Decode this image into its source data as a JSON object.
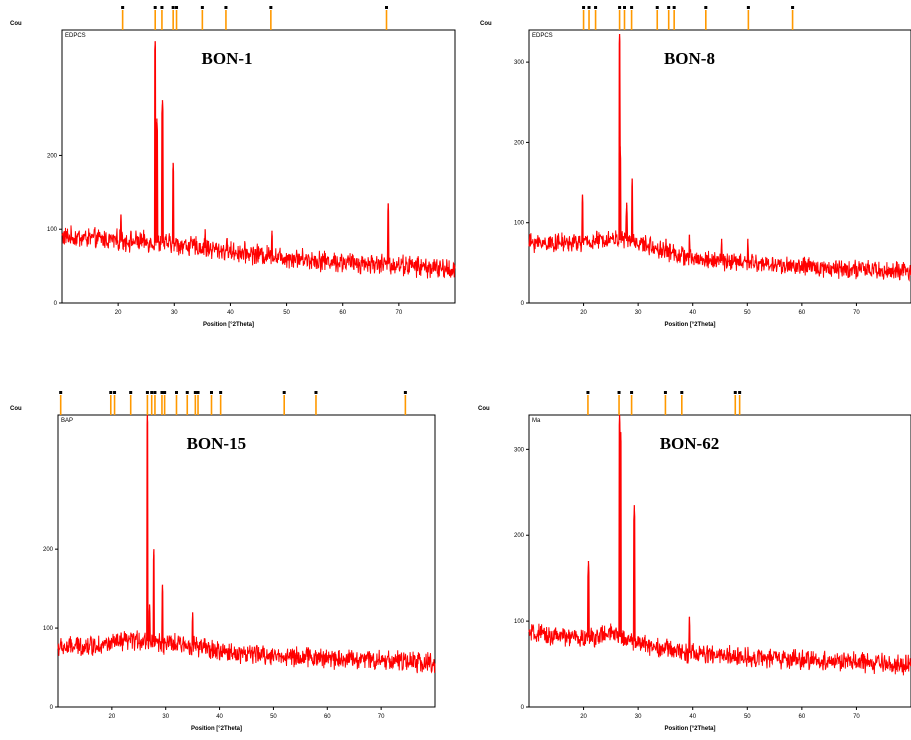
{
  "colors": {
    "trace": "#ff0000",
    "marker": "#ff9900",
    "frame": "#000000",
    "background": "#ffffff"
  },
  "chart_data": [
    {
      "type": "line",
      "title": "BON-1",
      "ylabel": "Cou",
      "inner_label": "EDPCS",
      "xlabel": "Position [°2Theta]",
      "xlim": [
        10,
        80
      ],
      "ylim": [
        0,
        370
      ],
      "xticks": [
        20,
        30,
        40,
        50,
        60,
        70
      ],
      "xtick_labels": [
        "20",
        "30",
        "40",
        "50",
        "60",
        "70"
      ],
      "yticks": [
        0,
        100,
        200
      ],
      "ytick_labels": [
        "0",
        "100",
        "200"
      ],
      "baseline": [
        [
          10,
          90
        ],
        [
          20,
          85
        ],
        [
          30,
          80
        ],
        [
          40,
          70
        ],
        [
          50,
          62
        ],
        [
          60,
          55
        ],
        [
          70,
          52
        ],
        [
          80,
          45
        ]
      ],
      "noise": 11,
      "peaks": [
        [
          20.5,
          120
        ],
        [
          26.6,
          355
        ],
        [
          26.9,
          250
        ],
        [
          27.9,
          275
        ],
        [
          29.8,
          190
        ],
        [
          35.5,
          100
        ],
        [
          39.4,
          88
        ],
        [
          47.4,
          98
        ],
        [
          68.1,
          135
        ]
      ],
      "markers": [
        20.8,
        26.6,
        27.8,
        29.8,
        30.4,
        35.0,
        39.2,
        47.2,
        67.8
      ]
    },
    {
      "type": "line",
      "title": "BON-8",
      "ylabel": "Cou",
      "inner_label": "EDPCS",
      "xlabel": "Position [°2Theta]",
      "xlim": [
        10,
        80
      ],
      "ylim": [
        0,
        340
      ],
      "xticks": [
        20,
        30,
        40,
        50,
        60,
        70
      ],
      "xtick_labels": [
        "20",
        "30",
        "40",
        "50",
        "60",
        "70"
      ],
      "yticks": [
        0,
        100,
        200,
        300
      ],
      "ytick_labels": [
        "0",
        "100",
        "200",
        "300"
      ],
      "baseline": [
        [
          10,
          75
        ],
        [
          20,
          75
        ],
        [
          25,
          80
        ],
        [
          30,
          75
        ],
        [
          35,
          65
        ],
        [
          40,
          55
        ],
        [
          50,
          50
        ],
        [
          60,
          45
        ],
        [
          70,
          42
        ],
        [
          80,
          38
        ]
      ],
      "noise": 9,
      "peaks": [
        [
          19.8,
          135
        ],
        [
          26.6,
          335
        ],
        [
          26.7,
          195
        ],
        [
          27.9,
          125
        ],
        [
          28.9,
          155
        ],
        [
          35.1,
          80
        ],
        [
          39.4,
          85
        ],
        [
          45.3,
          80
        ],
        [
          50.1,
          80
        ]
      ],
      "markers": [
        20.0,
        21.0,
        22.2,
        26.6,
        27.5,
        28.8,
        33.5,
        35.6,
        36.6,
        42.4,
        50.2,
        58.3
      ]
    },
    {
      "type": "line",
      "title": "BON-15",
      "ylabel": "Cou",
      "inner_label": "BAP",
      "xlabel": "Position [°2Theta]",
      "xlim": [
        10,
        80
      ],
      "ylim": [
        0,
        370
      ],
      "xticks": [
        20,
        30,
        40,
        50,
        60,
        70
      ],
      "xtick_labels": [
        "20",
        "30",
        "40",
        "50",
        "60",
        "70"
      ],
      "yticks": [
        0,
        100,
        200
      ],
      "ytick_labels": [
        "0",
        "100",
        "200"
      ],
      "baseline": [
        [
          10,
          75
        ],
        [
          20,
          80
        ],
        [
          25,
          85
        ],
        [
          30,
          80
        ],
        [
          35,
          78
        ],
        [
          40,
          70
        ],
        [
          50,
          65
        ],
        [
          60,
          62
        ],
        [
          70,
          60
        ],
        [
          80,
          55
        ]
      ],
      "noise": 10,
      "peaks": [
        [
          26.6,
          370
        ],
        [
          27.8,
          200
        ],
        [
          29.4,
          155
        ],
        [
          35.0,
          120
        ],
        [
          27.0,
          130
        ]
      ],
      "markers": [
        10.5,
        19.8,
        20.5,
        23.5,
        26.6,
        27.4,
        28.0,
        29.3,
        29.8,
        32.0,
        34.0,
        35.5,
        36.0,
        38.5,
        40.2,
        52.0,
        57.9,
        74.5
      ]
    },
    {
      "type": "line",
      "title": "BON-62",
      "ylabel": "Cou",
      "inner_label": "Ma",
      "xlabel": "Position [°2Theta]",
      "xlim": [
        10,
        80
      ],
      "ylim": [
        0,
        340
      ],
      "xticks": [
        20,
        30,
        40,
        50,
        60,
        70
      ],
      "xtick_labels": [
        "20",
        "30",
        "40",
        "50",
        "60",
        "70"
      ],
      "yticks": [
        0,
        100,
        200,
        300
      ],
      "ytick_labels": [
        "0",
        "100",
        "200",
        "300"
      ],
      "baseline": [
        [
          10,
          85
        ],
        [
          20,
          80
        ],
        [
          25,
          85
        ],
        [
          30,
          75
        ],
        [
          35,
          68
        ],
        [
          40,
          62
        ],
        [
          50,
          58
        ],
        [
          60,
          55
        ],
        [
          70,
          52
        ],
        [
          80,
          48
        ]
      ],
      "noise": 9,
      "peaks": [
        [
          20.9,
          170
        ],
        [
          26.6,
          340
        ],
        [
          26.8,
          320
        ],
        [
          29.3,
          235
        ],
        [
          39.4,
          105
        ]
      ],
      "markers": [
        20.8,
        26.5,
        28.8,
        35.0,
        38.0,
        47.8,
        48.6
      ]
    }
  ]
}
